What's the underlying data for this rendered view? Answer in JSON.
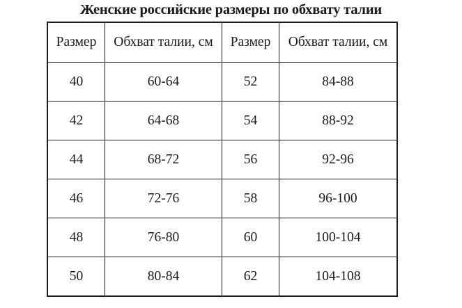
{
  "title": "Женские российские размеры по обхвату талии",
  "table": {
    "headers": [
      "Размер",
      "Обхват талии, см",
      "Размер",
      "Обхват талии, см"
    ],
    "rows": [
      [
        "40",
        "60-64",
        "52",
        "84-88"
      ],
      [
        "42",
        "64-68",
        "54",
        "88-92"
      ],
      [
        "44",
        "68-72",
        "56",
        "92-96"
      ],
      [
        "46",
        "72-76",
        "58",
        "96-100"
      ],
      [
        "48",
        "76-80",
        "60",
        "100-104"
      ],
      [
        "50",
        "80-84",
        "62",
        "104-108"
      ]
    ]
  }
}
